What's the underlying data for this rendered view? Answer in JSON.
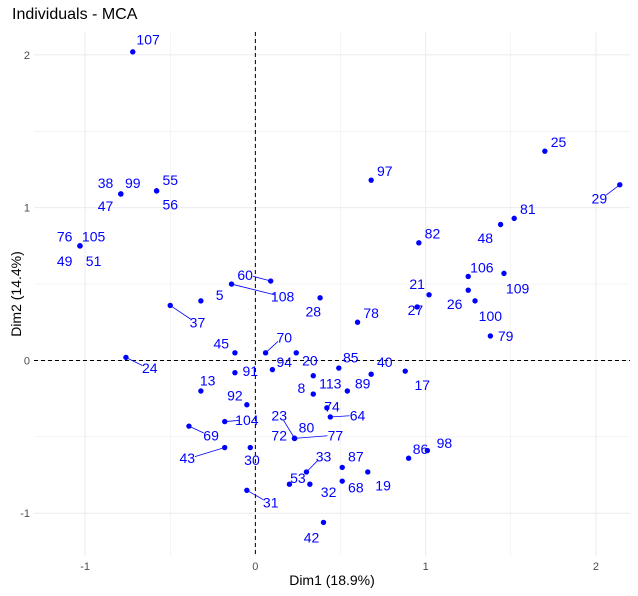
{
  "chart_data": {
    "type": "scatter",
    "title": "Individuals - MCA",
    "xlabel": "Dim1 (18.9%)",
    "ylabel": "Dim2 (14.4%)",
    "xlim": [
      -1.3,
      2.2
    ],
    "ylim": [
      -1.28,
      2.15
    ],
    "x_ticks": [
      -1,
      0,
      1,
      2
    ],
    "y_ticks": [
      -1,
      0,
      1,
      2
    ],
    "grid": true,
    "reference_lines": [
      0,
      0
    ],
    "point_color": "#0000ff",
    "points": [
      {
        "label": "107",
        "x": -0.72,
        "y": 2.02,
        "lx": -0.63,
        "ly": 2.1
      },
      {
        "label": "25",
        "x": 1.7,
        "y": 1.37,
        "lx": 1.78,
        "ly": 1.43
      },
      {
        "label": "29",
        "x": 2.14,
        "y": 1.15,
        "lx": 2.02,
        "ly": 1.06
      },
      {
        "label": "97",
        "x": 0.68,
        "y": 1.18,
        "lx": 0.76,
        "ly": 1.24
      },
      {
        "label": "81",
        "x": 1.52,
        "y": 0.93,
        "lx": 1.6,
        "ly": 0.99
      },
      {
        "label": "48",
        "x": 1.44,
        "y": 0.89,
        "lx": 1.35,
        "ly": 0.8
      },
      {
        "label": "82",
        "x": 0.96,
        "y": 0.77,
        "lx": 1.04,
        "ly": 0.83
      },
      {
        "label": "106",
        "x": 1.25,
        "y": 0.55,
        "lx": 1.33,
        "ly": 0.61
      },
      {
        "label": "109",
        "x": 1.46,
        "y": 0.57,
        "lx": 1.54,
        "ly": 0.47
      },
      {
        "label": "21",
        "x": 1.02,
        "y": 0.43,
        "lx": 0.95,
        "ly": 0.5
      },
      {
        "label": "26",
        "x": 1.25,
        "y": 0.46,
        "lx": 1.17,
        "ly": 0.37
      },
      {
        "label": "27",
        "x": 0.95,
        "y": 0.35,
        "lx": 0.94,
        "ly": 0.33
      },
      {
        "label": "100",
        "x": 1.29,
        "y": 0.39,
        "lx": 1.38,
        "ly": 0.29
      },
      {
        "label": "79",
        "x": 1.38,
        "y": 0.16,
        "lx": 1.47,
        "ly": 0.16
      },
      {
        "label": "38",
        "x": -0.79,
        "y": 1.09,
        "lx": -0.88,
        "ly": 1.16
      },
      {
        "label": "99",
        "x": -0.79,
        "y": 1.09,
        "lx": -0.72,
        "ly": 1.16
      },
      {
        "label": "47",
        "x": -0.79,
        "y": 1.09,
        "lx": -0.88,
        "ly": 1.01
      },
      {
        "label": "55",
        "x": -0.58,
        "y": 1.11,
        "lx": -0.5,
        "ly": 1.18
      },
      {
        "label": "56",
        "x": -0.58,
        "y": 1.11,
        "lx": -0.5,
        "ly": 1.02
      },
      {
        "label": "76",
        "x": -1.03,
        "y": 0.75,
        "lx": -1.12,
        "ly": 0.81
      },
      {
        "label": "105",
        "x": -1.03,
        "y": 0.75,
        "lx": -0.95,
        "ly": 0.81
      },
      {
        "label": "49",
        "x": -1.03,
        "y": 0.75,
        "lx": -1.12,
        "ly": 0.65
      },
      {
        "label": "51",
        "x": -1.03,
        "y": 0.75,
        "lx": -0.95,
        "ly": 0.65
      },
      {
        "label": "60",
        "x": 0.09,
        "y": 0.52,
        "lx": -0.06,
        "ly": 0.56
      },
      {
        "label": "108",
        "x": -0.14,
        "y": 0.5,
        "lx": 0.16,
        "ly": 0.42
      },
      {
        "label": "5",
        "x": -0.32,
        "y": 0.39,
        "lx": -0.21,
        "ly": 0.43
      },
      {
        "label": "28",
        "x": 0.38,
        "y": 0.41,
        "lx": 0.34,
        "ly": 0.32
      },
      {
        "label": "78",
        "x": 0.6,
        "y": 0.25,
        "lx": 0.68,
        "ly": 0.31
      },
      {
        "label": "37",
        "x": -0.5,
        "y": 0.36,
        "lx": -0.34,
        "ly": 0.25
      },
      {
        "label": "45",
        "x": -0.12,
        "y": 0.05,
        "lx": -0.2,
        "ly": 0.11
      },
      {
        "label": "70",
        "x": 0.06,
        "y": 0.05,
        "lx": 0.17,
        "ly": 0.15
      },
      {
        "label": "94",
        "x": 0.1,
        "y": -0.06,
        "lx": 0.17,
        "ly": -0.01
      },
      {
        "label": "20",
        "x": 0.24,
        "y": 0.05,
        "lx": 0.32,
        "ly": 0.0
      },
      {
        "label": "85",
        "x": 0.49,
        "y": -0.05,
        "lx": 0.56,
        "ly": 0.02
      },
      {
        "label": "40",
        "x": 0.68,
        "y": -0.09,
        "lx": 0.76,
        "ly": -0.01
      },
      {
        "label": "17",
        "x": 0.88,
        "y": -0.07,
        "lx": 0.98,
        "ly": -0.16
      },
      {
        "label": "24",
        "x": -0.76,
        "y": 0.02,
        "lx": -0.62,
        "ly": -0.05
      },
      {
        "label": "91",
        "x": -0.12,
        "y": -0.08,
        "lx": -0.03,
        "ly": -0.07
      },
      {
        "label": "13",
        "x": -0.32,
        "y": -0.2,
        "lx": -0.28,
        "ly": -0.13
      },
      {
        "label": "113",
        "x": 0.34,
        "y": -0.1,
        "lx": 0.44,
        "ly": -0.15
      },
      {
        "label": "8",
        "x": 0.34,
        "y": -0.22,
        "lx": 0.27,
        "ly": -0.18
      },
      {
        "label": "89",
        "x": 0.54,
        "y": -0.2,
        "lx": 0.63,
        "ly": -0.15
      },
      {
        "label": "92",
        "x": -0.05,
        "y": -0.29,
        "lx": -0.12,
        "ly": -0.23
      },
      {
        "label": "74",
        "x": 0.42,
        "y": -0.31,
        "lx": 0.45,
        "ly": -0.3
      },
      {
        "label": "64",
        "x": 0.44,
        "y": -0.37,
        "lx": 0.6,
        "ly": -0.36
      },
      {
        "label": "104",
        "x": -0.18,
        "y": -0.4,
        "lx": -0.05,
        "ly": -0.39
      },
      {
        "label": "23",
        "x": 0.23,
        "y": -0.51,
        "lx": 0.14,
        "ly": -0.36
      },
      {
        "label": "80",
        "x": 0.23,
        "y": -0.51,
        "lx": 0.3,
        "ly": -0.44
      },
      {
        "label": "72",
        "x": 0.23,
        "y": -0.51,
        "lx": 0.14,
        "ly": -0.49
      },
      {
        "label": "77",
        "x": 0.23,
        "y": -0.51,
        "lx": 0.47,
        "ly": -0.49
      },
      {
        "label": "69",
        "x": -0.39,
        "y": -0.43,
        "lx": -0.26,
        "ly": -0.49
      },
      {
        "label": "43",
        "x": -0.18,
        "y": -0.57,
        "lx": -0.4,
        "ly": -0.64
      },
      {
        "label": "98",
        "x": 1.01,
        "y": -0.59,
        "lx": 1.11,
        "ly": -0.54
      },
      {
        "label": "86",
        "x": 0.9,
        "y": -0.64,
        "lx": 0.97,
        "ly": -0.58
      },
      {
        "label": "30",
        "x": -0.03,
        "y": -0.57,
        "lx": -0.02,
        "ly": -0.65
      },
      {
        "label": "33",
        "x": 0.3,
        "y": -0.73,
        "lx": 0.4,
        "ly": -0.63
      },
      {
        "label": "87",
        "x": 0.51,
        "y": -0.7,
        "lx": 0.59,
        "ly": -0.63
      },
      {
        "label": "53",
        "x": 0.2,
        "y": -0.81,
        "lx": 0.25,
        "ly": -0.77
      },
      {
        "label": "19",
        "x": 0.66,
        "y": -0.73,
        "lx": 0.75,
        "ly": -0.82
      },
      {
        "label": "68",
        "x": 0.51,
        "y": -0.79,
        "lx": 0.59,
        "ly": -0.83
      },
      {
        "label": "32",
        "x": 0.32,
        "y": -0.81,
        "lx": 0.43,
        "ly": -0.86
      },
      {
        "label": "31",
        "x": -0.05,
        "y": -0.85,
        "lx": 0.09,
        "ly": -0.93
      },
      {
        "label": "42",
        "x": 0.4,
        "y": -1.06,
        "lx": 0.33,
        "ly": -1.16
      }
    ]
  }
}
